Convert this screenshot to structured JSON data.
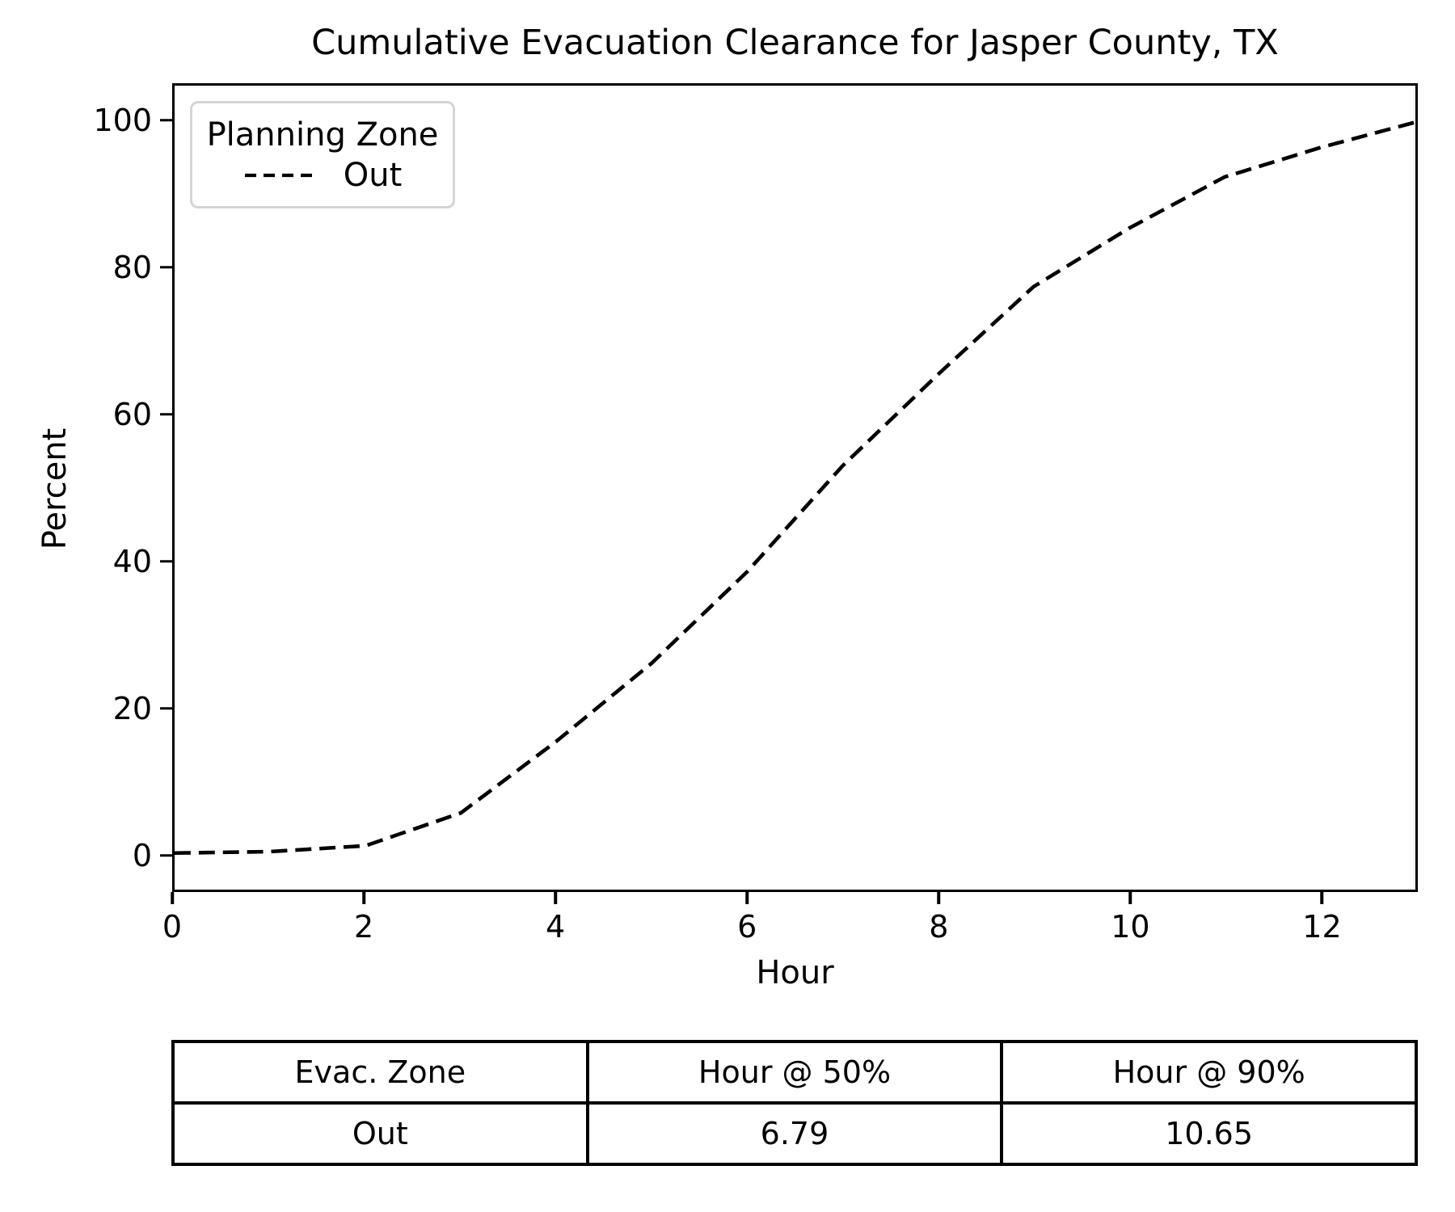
{
  "title": "Cumulative Evacuation Clearance for Jasper County, TX",
  "chart_data": {
    "type": "line",
    "title": "Cumulative Evacuation Clearance for Jasper County, TX",
    "xlabel": "Hour",
    "ylabel": "Percent",
    "xlim": [
      0,
      13
    ],
    "ylim": [
      -5,
      105
    ],
    "xticks": [
      0,
      2,
      4,
      6,
      8,
      10,
      12
    ],
    "yticks": [
      0,
      20,
      40,
      60,
      80,
      100
    ],
    "grid": false,
    "legend": {
      "title": "Planning Zone",
      "position": "upper left",
      "entries": [
        {
          "label": "Out",
          "linestyle": "dashed",
          "color": "#000000"
        }
      ]
    },
    "series": [
      {
        "name": "Out",
        "x": [
          0,
          1,
          2,
          3,
          4,
          5,
          6,
          7,
          8,
          9,
          10,
          11,
          12,
          13
        ],
        "y": [
          0,
          0.2,
          1,
          5.5,
          15.3,
          26,
          38.5,
          53,
          65.5,
          77.5,
          85.5,
          92.5,
          96.5,
          100
        ]
      }
    ],
    "annotations": {
      "hour_at_50pct": 6.79,
      "hour_at_90pct": 10.65
    }
  },
  "table": {
    "headers": [
      "Evac. Zone",
      "Hour @ 50%",
      "Hour @ 90%"
    ],
    "rows": [
      [
        "Out",
        "6.79",
        "10.65"
      ]
    ]
  },
  "colors": {
    "line": "#000000",
    "axis": "#000000",
    "legend_border": "#d4d4d4",
    "background": "#ffffff"
  }
}
